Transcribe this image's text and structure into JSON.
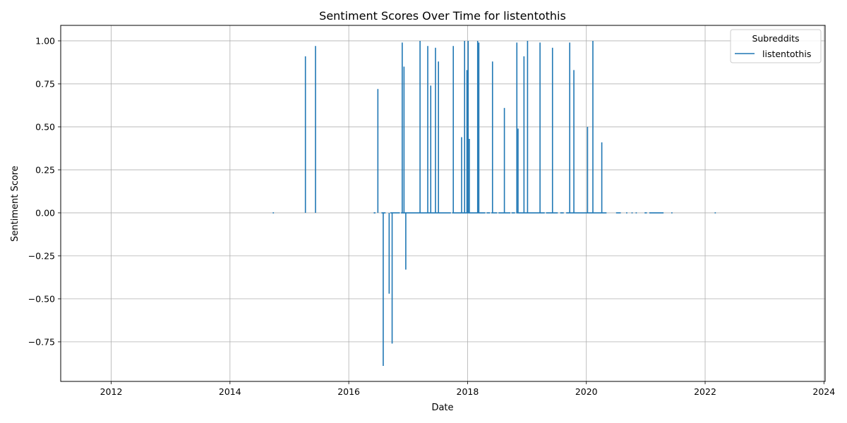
{
  "chart_data": {
    "type": "line",
    "title": "Sentiment Scores Over Time for listentothis",
    "xlabel": "Date",
    "ylabel": "Sentiment Score",
    "xlim": [
      2011.15,
      2024.02
    ],
    "ylim": [
      -0.98,
      1.09
    ],
    "x_ticks": [
      2012,
      2014,
      2016,
      2018,
      2020,
      2022,
      2024
    ],
    "x_tick_labels": [
      "2012",
      "2014",
      "2016",
      "2018",
      "2020",
      "2022",
      "2024"
    ],
    "y_ticks": [
      1.0,
      0.75,
      0.5,
      0.25,
      0.0,
      -0.25,
      -0.5,
      -0.75
    ],
    "y_tick_labels": [
      "1.00",
      "0.75",
      "0.50",
      "0.25",
      "0.00",
      "−0.25",
      "−0.50",
      "−0.75"
    ],
    "grid": true,
    "legend": {
      "title": "Subreddits",
      "position": "top-right"
    },
    "series": [
      {
        "name": "listentothis",
        "color": "#1f77b4",
        "spikes": [
          {
            "x": 2015.27,
            "y": 0.91
          },
          {
            "x": 2015.44,
            "y": 0.97
          },
          {
            "x": 2016.49,
            "y": 0.72
          },
          {
            "x": 2016.58,
            "y": -0.89
          },
          {
            "x": 2016.68,
            "y": -0.47
          },
          {
            "x": 2016.73,
            "y": -0.76
          },
          {
            "x": 2016.9,
            "y": 0.99
          },
          {
            "x": 2016.93,
            "y": 0.85
          },
          {
            "x": 2016.96,
            "y": -0.33
          },
          {
            "x": 2017.2,
            "y": 1.0
          },
          {
            "x": 2017.33,
            "y": 0.97
          },
          {
            "x": 2017.38,
            "y": 0.74
          },
          {
            "x": 2017.46,
            "y": 0.96
          },
          {
            "x": 2017.51,
            "y": 0.88
          },
          {
            "x": 2017.76,
            "y": 0.97
          },
          {
            "x": 2017.9,
            "y": 0.44
          },
          {
            "x": 2017.95,
            "y": 1.0
          },
          {
            "x": 2017.99,
            "y": 0.83
          },
          {
            "x": 2018.01,
            "y": 1.0
          },
          {
            "x": 2018.03,
            "y": 0.43
          },
          {
            "x": 2018.17,
            "y": 1.0
          },
          {
            "x": 2018.19,
            "y": 0.99
          },
          {
            "x": 2018.42,
            "y": 0.88
          },
          {
            "x": 2018.62,
            "y": 0.61
          },
          {
            "x": 2018.83,
            "y": 0.99
          },
          {
            "x": 2018.85,
            "y": 0.49
          },
          {
            "x": 2018.95,
            "y": 0.91
          },
          {
            "x": 2019.01,
            "y": 1.0
          },
          {
            "x": 2019.22,
            "y": 0.99
          },
          {
            "x": 2019.43,
            "y": 0.96
          },
          {
            "x": 2019.72,
            "y": 0.99
          },
          {
            "x": 2019.79,
            "y": 0.83
          },
          {
            "x": 2020.02,
            "y": 0.5
          },
          {
            "x": 2020.11,
            "y": 1.0
          },
          {
            "x": 2020.26,
            "y": 0.41
          }
        ],
        "zero_segments": [
          [
            2014.72,
            2014.74
          ],
          [
            2016.42,
            2016.45
          ],
          [
            2016.55,
            2016.62
          ],
          [
            2016.7,
            2016.86
          ],
          [
            2016.88,
            2017.72
          ],
          [
            2017.74,
            2018.3
          ],
          [
            2018.32,
            2018.38
          ],
          [
            2018.4,
            2018.5
          ],
          [
            2018.52,
            2018.72
          ],
          [
            2018.74,
            2018.8
          ],
          [
            2018.82,
            2019.3
          ],
          [
            2019.32,
            2019.52
          ],
          [
            2019.56,
            2019.62
          ],
          [
            2019.66,
            2020.34
          ],
          [
            2020.5,
            2020.58
          ],
          [
            2020.67,
            2020.69
          ],
          [
            2020.76,
            2020.78
          ],
          [
            2020.83,
            2020.85
          ],
          [
            2020.98,
            2021.02
          ],
          [
            2021.06,
            2021.3
          ],
          [
            2021.43,
            2021.45
          ],
          [
            2022.16,
            2022.18
          ]
        ]
      }
    ]
  }
}
